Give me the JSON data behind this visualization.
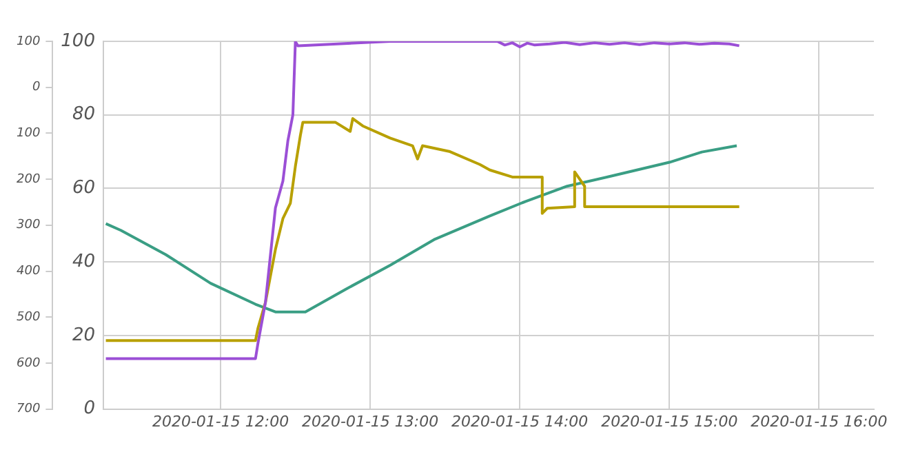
{
  "chart_data": {
    "type": "line",
    "xlim": [
      "2020-01-15T11:13",
      "2020-01-15T16:22"
    ],
    "xticks": [
      {
        "value": "2020-01-15T12:00",
        "label": "2020-01-15 12:00"
      },
      {
        "value": "2020-01-15T13:00",
        "label": "2020-01-15 13:00"
      },
      {
        "value": "2020-01-15T14:00",
        "label": "2020-01-15 14:00"
      },
      {
        "value": "2020-01-15T15:00",
        "label": "2020-01-15 15:00"
      },
      {
        "value": "2020-01-15T16:00",
        "label": "2020-01-15 16:00"
      }
    ],
    "ylim": [
      0,
      100
    ],
    "yticks": [
      0,
      20,
      40,
      60,
      80,
      100
    ],
    "y2lim": [
      700,
      -100
    ],
    "y2ticks": [
      {
        "value": -100,
        "label": "100"
      },
      0,
      100,
      200,
      300,
      400,
      500,
      600,
      700
    ],
    "grid": true,
    "legend": false,
    "marker": "none",
    "line_style": "solid",
    "series": [
      {
        "color": "#9b4fd6",
        "x": [
          "2020-01-15T11:14",
          "2020-01-15T12:14",
          "2020-01-15T12:15",
          "2020-01-15T12:18",
          "2020-01-15T12:22",
          "2020-01-15T12:25",
          "2020-01-15T12:27",
          "2020-01-15T12:29",
          "2020-01-15T12:30",
          "2020-01-15T12:31",
          "2020-01-15T13:08",
          "2020-01-15T13:51",
          "2020-01-15T13:54",
          "2020-01-15T13:57",
          "2020-01-15T14:00",
          "2020-01-15T14:03",
          "2020-01-15T14:06",
          "2020-01-15T14:12",
          "2020-01-15T14:18",
          "2020-01-15T14:24",
          "2020-01-15T14:30",
          "2020-01-15T14:36",
          "2020-01-15T14:42",
          "2020-01-15T14:48",
          "2020-01-15T14:54",
          "2020-01-15T15:00",
          "2020-01-15T15:06",
          "2020-01-15T15:12",
          "2020-01-15T15:18",
          "2020-01-15T15:24",
          "2020-01-15T15:28"
        ],
        "values": [
          13.7,
          13.7,
          17.9,
          29,
          54.7,
          62,
          73,
          80,
          99.9,
          98.8,
          100,
          100,
          99,
          99.6,
          98.5,
          99.5,
          99,
          99.3,
          99.7,
          99.1,
          99.6,
          99.2,
          99.6,
          99.1,
          99.6,
          99.3,
          99.6,
          99.2,
          99.5,
          99.3,
          98.8
        ]
      },
      {
        "color": "#b8a000",
        "x": [
          "2020-01-15T11:14",
          "2020-01-15T12:14",
          "2020-01-15T12:15",
          "2020-01-15T12:18",
          "2020-01-15T12:22",
          "2020-01-15T12:25",
          "2020-01-15T12:28",
          "2020-01-15T12:30",
          "2020-01-15T12:32",
          "2020-01-15T12:33",
          "2020-01-15T12:46",
          "2020-01-15T12:52",
          "2020-01-15T12:53",
          "2020-01-15T12:57",
          "2020-01-15T13:08",
          "2020-01-15T13:17",
          "2020-01-15T13:19",
          "2020-01-15T13:21",
          "2020-01-15T13:32",
          "2020-01-15T13:44",
          "2020-01-15T13:48",
          "2020-01-15T13:57",
          "2020-01-15T14:09",
          "2020-01-15T14:09",
          "2020-01-15T14:11",
          "2020-01-15T14:22",
          "2020-01-15T14:22",
          "2020-01-15T14:26",
          "2020-01-15T14:26",
          "2020-01-15T15:28"
        ],
        "values": [
          18.6,
          18.6,
          22,
          29,
          43.4,
          51.8,
          56,
          66,
          74.4,
          78,
          78,
          75.5,
          79,
          77,
          73.7,
          71.6,
          68,
          71.6,
          70,
          66.5,
          65,
          63.1,
          63.1,
          53.2,
          54.6,
          55,
          64.5,
          60.6,
          55,
          55
        ]
      },
      {
        "color": "#3a9e84",
        "x": [
          "2020-01-15T11:14",
          "2020-01-15T11:20",
          "2020-01-15T11:38",
          "2020-01-15T11:56",
          "2020-01-15T12:14",
          "2020-01-15T12:22",
          "2020-01-15T12:34",
          "2020-01-15T12:50",
          "2020-01-15T13:08",
          "2020-01-15T13:26",
          "2020-01-15T13:48",
          "2020-01-15T14:01",
          "2020-01-15T14:19",
          "2020-01-15T14:37",
          "2020-01-15T15:00",
          "2020-01-15T15:13",
          "2020-01-15T15:27"
        ],
        "values": [
          50.4,
          48.6,
          42,
          34.2,
          28.5,
          26.4,
          26.4,
          32.5,
          39.1,
          46.2,
          52.5,
          56.1,
          60.6,
          63.4,
          67.1,
          69.9,
          71.6
        ]
      }
    ]
  }
}
